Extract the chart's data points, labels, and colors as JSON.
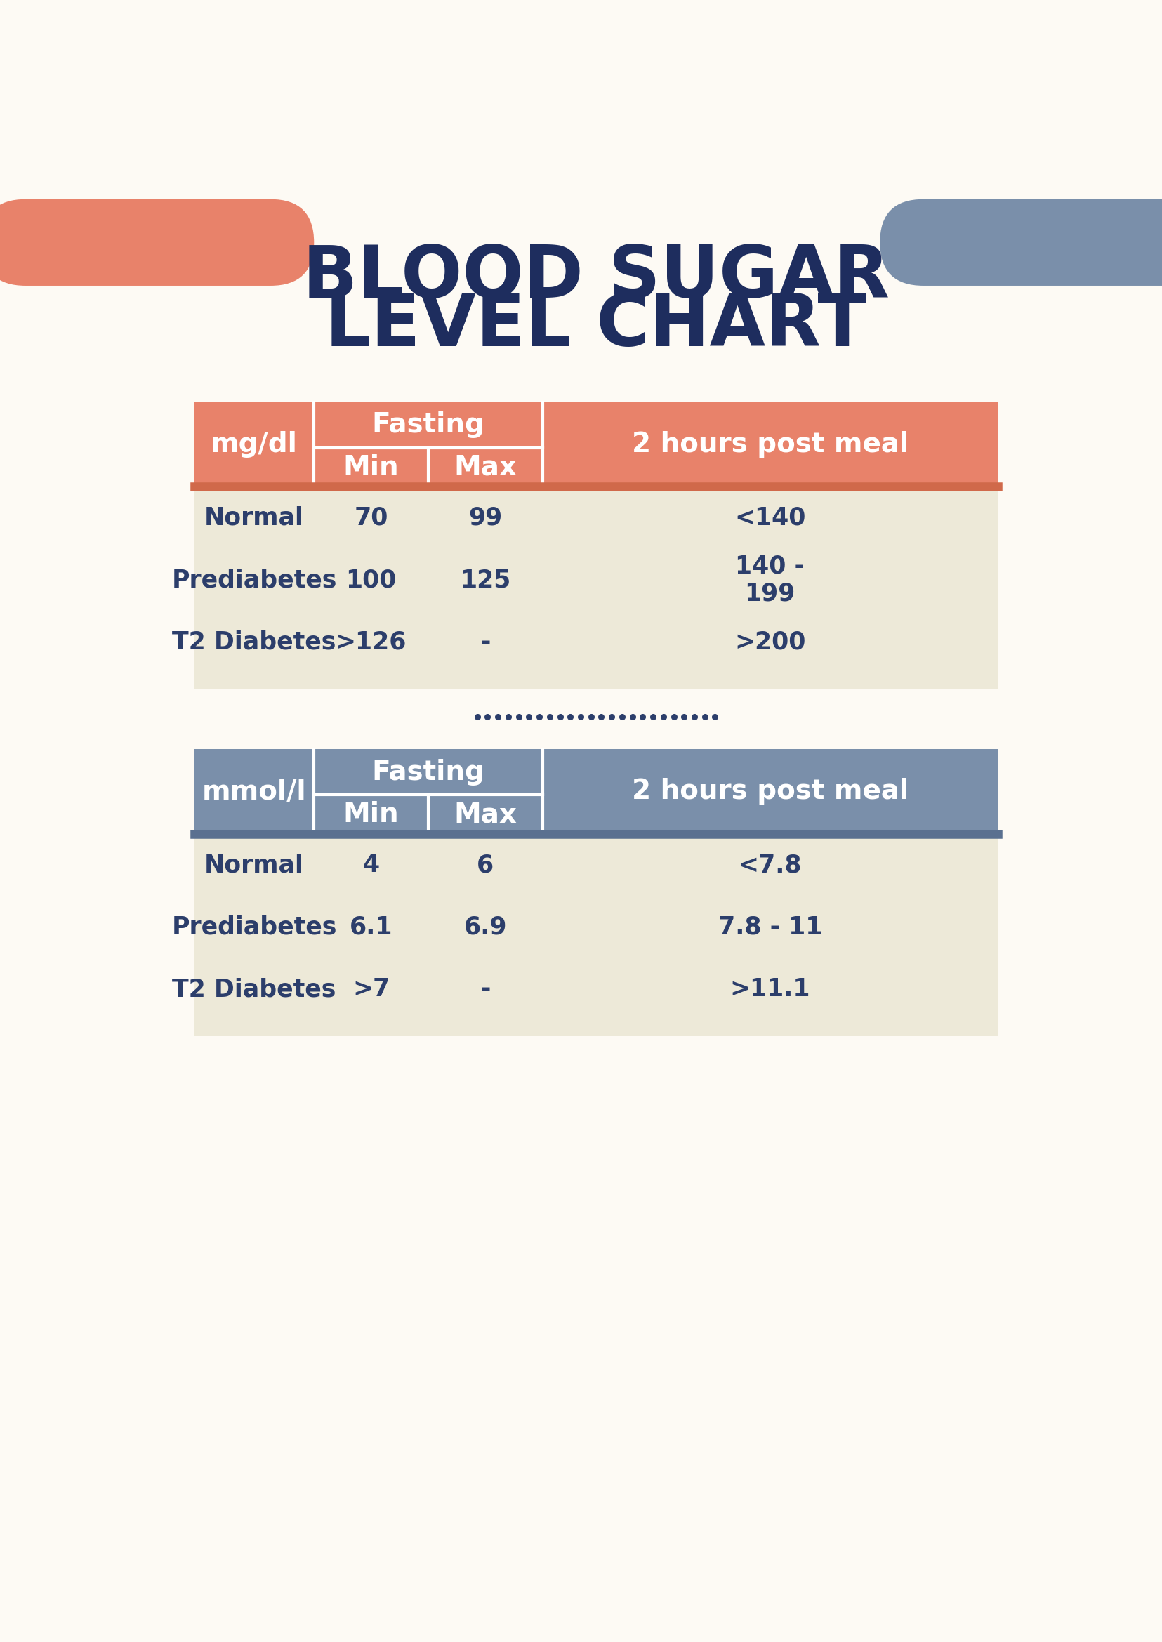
{
  "title_line1": "BLOOD SUGAR",
  "title_line2": "LEVEL CHART",
  "title_color": "#1e2d5e",
  "bg_color": "#fdfaf4",
  "salmon_color": "#e8826a",
  "steel_color": "#7a8faa",
  "header_text_color": "#ffffff",
  "table_bg_color": "#ede9d8",
  "data_text_color": "#2c3e6b",
  "separator_color": "#d0694a",
  "separator_color2": "#5a7090",
  "dot_color": "#2c3e6b",
  "table1_unit": "mg/dl",
  "table1_col1": "Fasting",
  "table1_col2": "Min",
  "table1_col3": "Max",
  "table1_col4": "2 hours post meal",
  "table1_rows": [
    [
      "Normal",
      "70",
      "99",
      "<140"
    ],
    [
      "Prediabetes",
      "100",
      "125",
      "140 -\n199"
    ],
    [
      "T2 Diabetes",
      ">126",
      "-",
      ">200"
    ]
  ],
  "table2_unit": "mmol/l",
  "table2_col1": "Fasting",
  "table2_col2": "Min",
  "table2_col3": "Max",
  "table2_col4": "2 hours post meal",
  "table2_rows": [
    [
      "Normal",
      "4",
      "6",
      "<7.8"
    ],
    [
      "Prediabetes",
      "6.1",
      "6.9",
      "7.8 - 11"
    ],
    [
      "T2 Diabetes",
      ">7",
      "-",
      ">11.1"
    ]
  ]
}
